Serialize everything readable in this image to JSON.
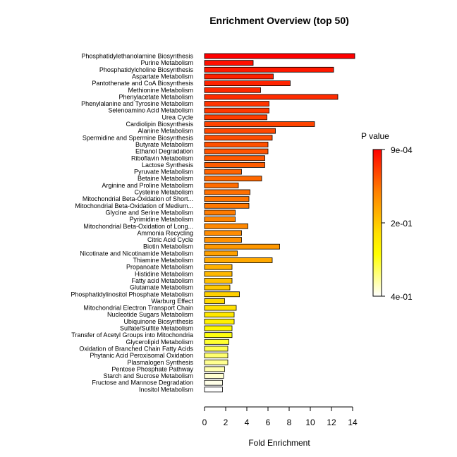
{
  "chart_data": {
    "type": "bar",
    "orientation": "horizontal",
    "title": "Enrichment Overview (top 50)",
    "xlabel": "Fold Enrichment",
    "ylabel": "",
    "xlim": [
      0,
      14.2
    ],
    "x_ticks": [
      0,
      2,
      4,
      6,
      8,
      10,
      12,
      14
    ],
    "grid": false,
    "legend": {
      "title": "P value",
      "placement": "right",
      "labels": [
        "9e-04",
        "2e-01",
        "4e-01"
      ]
    },
    "categories": [
      "Phosphatidylethanolamine Biosynthesis",
      "Purine Metabolism",
      "Phosphatidylcholine Biosynthesis",
      "Aspartate Metabolism",
      "Pantothenate and CoA Biosynthesis",
      "Methionine Metabolism",
      "Phenylacetate Metabolism",
      "Phenylalanine and Tyrosine Metabolism",
      "Selenoamino Acid Metabolism",
      "Urea Cycle",
      "Cardiolipin Biosynthesis",
      "Alanine Metabolism",
      "Spermidine and Spermine Biosynthesis",
      "Butyrate Metabolism",
      "Ethanol Degradation",
      "Riboflavin Metabolism",
      "Lactose Synthesis",
      "Pyruvate Metabolism",
      "Betaine Metabolism",
      "Arginine and Proline Metabolism",
      "Cysteine Metabolism",
      "Mitochondrial Beta-Oxidation of Short...",
      "Mitochondrial Beta-Oxidation of Medium...",
      "Glycine and Serine Metabolism",
      "Pyrimidine Metabolism",
      "Mitochondrial Beta-Oxidation of Long...",
      "Ammonia Recycling",
      "Citric Acid Cycle",
      "Biotin Metabolism",
      "Nicotinate and Nicotinamide Metabolism",
      "Thiamine Metabolism",
      "Propanoate Metabolism",
      "Histidine Metabolism",
      "Fatty acid Metabolism",
      "Glutamate Metabolism",
      "Phosphatidylinositol Phosphate Metabolism",
      "Warburg Effect",
      "Mitochondrial Electron Transport Chain",
      "Nucleotide Sugars Metabolism",
      "Ubiquinone Biosynthesis",
      "Sulfate/Sulfite Metabolism",
      "Transfer of Acetyl Groups into Mitochondria",
      "Glycerolipid Metabolism",
      "Oxidation of Branched Chain Fatty Acids",
      "Phytanic Acid Peroxisomal Oxidation",
      "Plasmalogen Synthesis",
      "Pentose Phosphate Pathway",
      "Starch and Sucrose Metabolism",
      "Fructose and Mannose Degradation",
      "Inositol Metabolism"
    ],
    "values": [
      14.2,
      4.6,
      12.2,
      6.5,
      8.1,
      5.3,
      12.6,
      6.1,
      6.1,
      5.9,
      10.4,
      6.7,
      6.4,
      6.0,
      6.0,
      5.7,
      5.7,
      3.5,
      5.4,
      3.2,
      4.3,
      4.2,
      4.2,
      2.9,
      2.9,
      4.1,
      3.5,
      3.5,
      7.1,
      3.1,
      6.4,
      2.6,
      2.6,
      2.6,
      2.4,
      3.3,
      1.9,
      3.0,
      2.8,
      2.8,
      2.6,
      2.6,
      2.3,
      2.2,
      2.2,
      2.2,
      1.9,
      1.8,
      1.7,
      1.7
    ],
    "colors": [
      "#ff0000",
      "#ff1000",
      "#ff1800",
      "#ff2000",
      "#ff2400",
      "#ff2800",
      "#ff2c00",
      "#ff3400",
      "#ff3800",
      "#ff3c00",
      "#ff4400",
      "#ff4800",
      "#ff4c00",
      "#ff5000",
      "#ff5400",
      "#ff5800",
      "#ff5c00",
      "#ff6400",
      "#ff6800",
      "#ff6c00",
      "#ff7000",
      "#ff7400",
      "#ff7800",
      "#ff7c00",
      "#ff8400",
      "#ff8800",
      "#ff8c00",
      "#ff9000",
      "#ff9800",
      "#ffa000",
      "#ffa800",
      "#ffb000",
      "#ffb800",
      "#ffc000",
      "#ffc800",
      "#ffd000",
      "#ffd800",
      "#ffe000",
      "#ffe800",
      "#fff000",
      "#fff800",
      "#ffff10",
      "#ffff30",
      "#ffff50",
      "#ffff70",
      "#ffff90",
      "#ffffb0",
      "#ffffd0",
      "#ffffe8",
      "#ffffff"
    ],
    "colorbar": [
      "#ff0000",
      "#ff4000",
      "#ff8000",
      "#ffb000",
      "#ffe000",
      "#ffff00",
      "#ffff80",
      "#ffffff"
    ]
  }
}
